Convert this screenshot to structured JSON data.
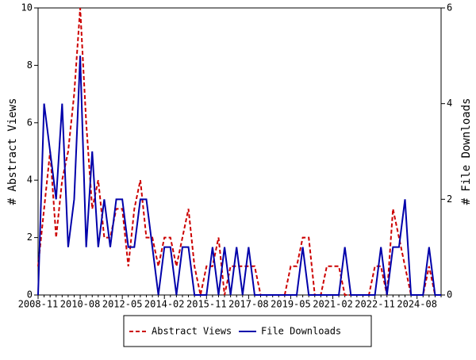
{
  "chart_data": {
    "type": "line",
    "ylabel": "# Abstract Views",
    "y2label": "# File Downloads",
    "categories": [
      "2008-11",
      null,
      null,
      null,
      null,
      null,
      null,
      "2010-08",
      null,
      null,
      null,
      null,
      null,
      null,
      "2012-05",
      null,
      null,
      null,
      null,
      null,
      null,
      "2014-02",
      null,
      null,
      null,
      null,
      null,
      null,
      "2015-11",
      null,
      null,
      null,
      null,
      null,
      null,
      "2017-08",
      null,
      null,
      null,
      null,
      null,
      null,
      "2019-05",
      null,
      null,
      null,
      null,
      null,
      null,
      "2021-02",
      null,
      null,
      null,
      null,
      null,
      null,
      "2022-11",
      null,
      null,
      null,
      null,
      null,
      null,
      "2024-08",
      null,
      null,
      null,
      null
    ],
    "series": [
      {
        "name": "Abstract Views",
        "color": "#cc0000",
        "dashed": true,
        "values": [
          1,
          3,
          5,
          2,
          4,
          5,
          7,
          10,
          6,
          3,
          4,
          2,
          2,
          3,
          3,
          1,
          3,
          4,
          2,
          2,
          1,
          2,
          2,
          1,
          2,
          3,
          1,
          0,
          1,
          1,
          2,
          0,
          1,
          1,
          1,
          1,
          1,
          0,
          0,
          0,
          0,
          0,
          1,
          1,
          2,
          2,
          0,
          0,
          1,
          1,
          1,
          0,
          0,
          0,
          0,
          0,
          1,
          1,
          0,
          3,
          2,
          1,
          0,
          0,
          0,
          1,
          0,
          0
        ]
      },
      {
        "name": "File Downloads",
        "color": "#0000aa",
        "axis": "y2",
        "values": [
          0,
          4,
          3,
          2,
          4,
          1,
          2,
          5,
          1,
          3,
          1,
          2,
          1,
          2,
          2,
          1,
          1,
          2,
          2,
          1,
          0,
          1,
          1,
          0,
          1,
          1,
          0,
          0,
          0,
          1,
          0,
          1,
          0,
          1,
          0,
          1,
          0,
          0,
          0,
          0,
          0,
          0,
          0,
          0,
          1,
          0,
          0,
          0,
          0,
          0,
          0,
          1,
          0,
          0,
          0,
          0,
          0,
          1,
          0,
          1,
          1,
          2,
          0,
          0,
          0,
          1,
          0,
          0
        ]
      }
    ],
    "ylim": [
      0,
      10
    ],
    "yticks": [
      0,
      2,
      4,
      6,
      8,
      10
    ],
    "y2lim": [
      0,
      6
    ],
    "y2ticks": [
      0,
      2,
      4,
      6
    ]
  }
}
